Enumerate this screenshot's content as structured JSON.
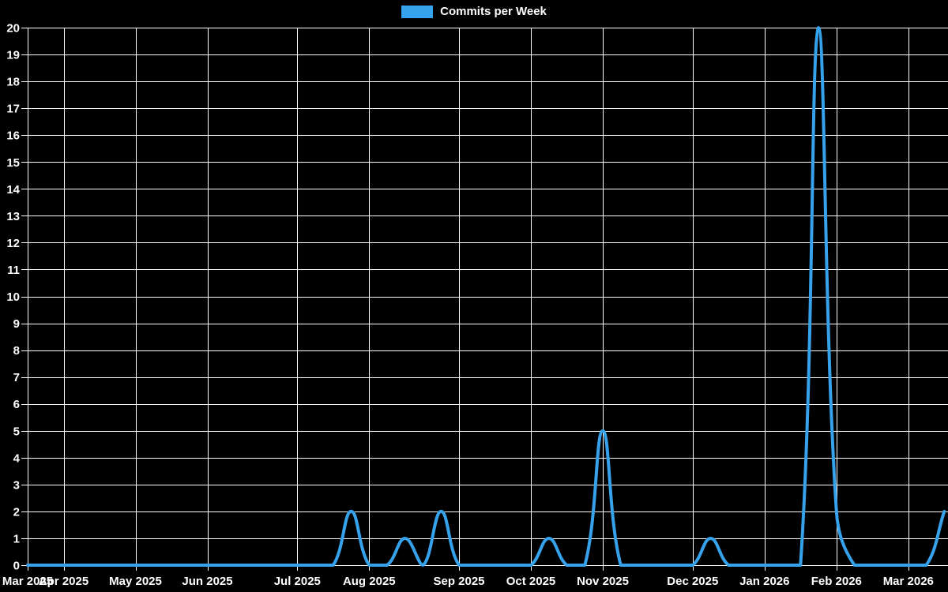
{
  "chart_data": {
    "type": "line",
    "title": "",
    "legend_position": "top",
    "legend": [
      {
        "label": "Commits per Week",
        "color": "#36a2eb"
      }
    ],
    "background_color": "#000000",
    "grid": true,
    "grid_color": "#ffffff",
    "text_color": "#ffffff",
    "x_axis": {
      "unit": "week",
      "num_points": 52,
      "tick_labels": [
        "Mar 2025",
        "Apr 2025",
        "May 2025",
        "Jun 2025",
        "Jul 2025",
        "Aug 2025",
        "Sep 2025",
        "Oct 2025",
        "Nov 2025",
        "Dec 2025",
        "Jan 2026",
        "Feb 2026",
        "Mar 2026"
      ],
      "tick_week_indices": [
        0,
        2,
        6,
        10,
        15,
        19,
        24,
        28,
        32,
        37,
        41,
        45,
        49
      ]
    },
    "y_axis": {
      "min": 0,
      "max": 20,
      "tick_step": 1,
      "tick_labels": [
        "0",
        "1",
        "2",
        "3",
        "4",
        "5",
        "6",
        "7",
        "8",
        "9",
        "10",
        "11",
        "12",
        "13",
        "14",
        "15",
        "16",
        "17",
        "18",
        "19",
        "20"
      ]
    },
    "series": [
      {
        "name": "Commits per Week",
        "color": "#36a2eb",
        "line_width": 4,
        "tension": 0.4,
        "values": [
          0,
          0,
          0,
          0,
          0,
          0,
          0,
          0,
          0,
          0,
          0,
          0,
          0,
          0,
          0,
          0,
          0,
          0,
          2,
          0,
          0,
          1,
          0,
          2,
          0,
          0,
          0,
          0,
          0,
          1,
          0,
          0,
          5,
          0,
          0,
          0,
          0,
          0,
          1,
          0,
          0,
          0,
          0,
          0,
          20,
          2,
          0,
          0,
          0,
          0,
          0,
          2
        ]
      }
    ]
  }
}
